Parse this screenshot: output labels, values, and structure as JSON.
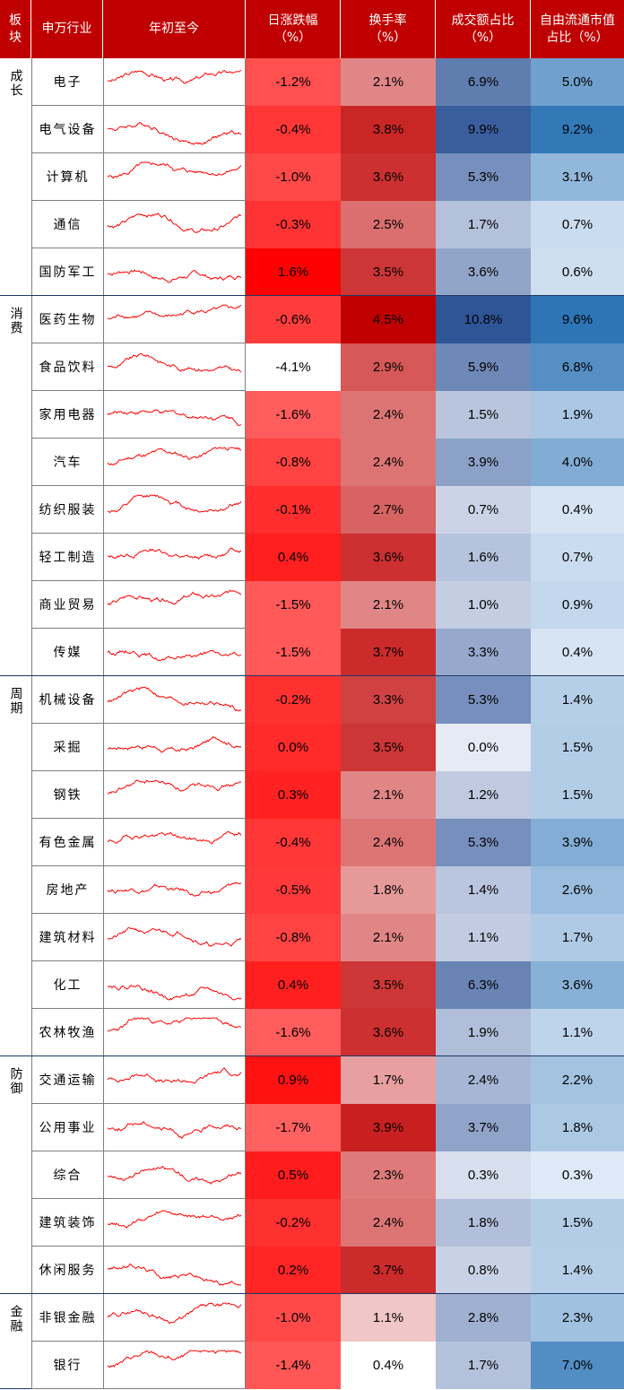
{
  "header": {
    "sector": [
      "板",
      "块"
    ],
    "industry": "申万行业",
    "ytd": "年初至今",
    "daily_change": [
      "日涨跌幅",
      "（%）"
    ],
    "turnover": [
      "换手率",
      "（%）"
    ],
    "volume_share": [
      "成交额占比",
      "（%）"
    ],
    "float_cap_share": [
      "自由流通市值",
      "占比（%）"
    ]
  },
  "colors": {
    "header_bg": "#c00000",
    "red_max": "#ff0000",
    "red_turnover_max": "#c00000",
    "blue_max": "#2f5597",
    "spark_line": "#ff0000"
  },
  "chart_data": {
    "type": "table",
    "columns": [
      "板块",
      "申万行业",
      "年初至今",
      "日涨跌幅（%）",
      "换手率（%）",
      "成交额占比（%）",
      "自由流通市值占比（%）"
    ],
    "groups": [
      {
        "sector": "成长",
        "rows": [
          {
            "industry": "电子",
            "daily": "-1.2%",
            "turnover": "2.1%",
            "volume": "6.9%",
            "cap": "5.0%"
          },
          {
            "industry": "电气设备",
            "daily": "-0.4%",
            "turnover": "3.8%",
            "volume": "9.9%",
            "cap": "9.2%"
          },
          {
            "industry": "计算机",
            "daily": "-1.0%",
            "turnover": "3.6%",
            "volume": "5.3%",
            "cap": "3.1%"
          },
          {
            "industry": "通信",
            "daily": "-0.3%",
            "turnover": "2.5%",
            "volume": "1.7%",
            "cap": "0.7%"
          },
          {
            "industry": "国防军工",
            "daily": "1.6%",
            "turnover": "3.5%",
            "volume": "3.6%",
            "cap": "0.6%"
          }
        ]
      },
      {
        "sector": "消费",
        "rows": [
          {
            "industry": "医药生物",
            "daily": "-0.6%",
            "turnover": "4.5%",
            "volume": "10.8%",
            "cap": "9.6%"
          },
          {
            "industry": "食品饮料",
            "daily": "-4.1%",
            "turnover": "2.9%",
            "volume": "5.9%",
            "cap": "6.8%"
          },
          {
            "industry": "家用电器",
            "daily": "-1.6%",
            "turnover": "2.4%",
            "volume": "1.5%",
            "cap": "1.9%"
          },
          {
            "industry": "汽车",
            "daily": "-0.8%",
            "turnover": "2.4%",
            "volume": "3.9%",
            "cap": "4.0%"
          },
          {
            "industry": "纺织服装",
            "daily": "-0.1%",
            "turnover": "2.7%",
            "volume": "0.7%",
            "cap": "0.4%"
          },
          {
            "industry": "轻工制造",
            "daily": "0.4%",
            "turnover": "3.6%",
            "volume": "1.6%",
            "cap": "0.7%"
          },
          {
            "industry": "商业贸易",
            "daily": "-1.5%",
            "turnover": "2.1%",
            "volume": "1.0%",
            "cap": "0.9%"
          },
          {
            "industry": "传媒",
            "daily": "-1.5%",
            "turnover": "3.7%",
            "volume": "3.3%",
            "cap": "0.4%"
          }
        ]
      },
      {
        "sector": "周期",
        "rows": [
          {
            "industry": "机械设备",
            "daily": "-0.2%",
            "turnover": "3.3%",
            "volume": "5.3%",
            "cap": "1.4%"
          },
          {
            "industry": "采掘",
            "daily": "0.0%",
            "turnover": "3.5%",
            "volume": "0.0%",
            "cap": "1.5%"
          },
          {
            "industry": "钢铁",
            "daily": "0.3%",
            "turnover": "2.1%",
            "volume": "1.2%",
            "cap": "1.5%"
          },
          {
            "industry": "有色金属",
            "daily": "-0.4%",
            "turnover": "2.4%",
            "volume": "5.3%",
            "cap": "3.9%"
          },
          {
            "industry": "房地产",
            "daily": "-0.5%",
            "turnover": "1.8%",
            "volume": "1.4%",
            "cap": "2.6%"
          },
          {
            "industry": "建筑材料",
            "daily": "-0.8%",
            "turnover": "2.1%",
            "volume": "1.1%",
            "cap": "1.7%"
          },
          {
            "industry": "化工",
            "daily": "0.4%",
            "turnover": "3.5%",
            "volume": "6.3%",
            "cap": "3.6%"
          },
          {
            "industry": "农林牧渔",
            "daily": "-1.6%",
            "turnover": "3.6%",
            "volume": "1.9%",
            "cap": "1.1%"
          }
        ]
      },
      {
        "sector": "防御",
        "rows": [
          {
            "industry": "交通运输",
            "daily": "0.9%",
            "turnover": "1.7%",
            "volume": "2.4%",
            "cap": "2.2%"
          },
          {
            "industry": "公用事业",
            "daily": "-1.7%",
            "turnover": "3.9%",
            "volume": "3.7%",
            "cap": "1.8%"
          },
          {
            "industry": "综合",
            "daily": "0.5%",
            "turnover": "2.3%",
            "volume": "0.3%",
            "cap": "0.3%"
          },
          {
            "industry": "建筑装饰",
            "daily": "-0.2%",
            "turnover": "2.4%",
            "volume": "1.8%",
            "cap": "1.5%"
          },
          {
            "industry": "休闲服务",
            "daily": "0.2%",
            "turnover": "3.7%",
            "volume": "0.8%",
            "cap": "1.4%"
          }
        ]
      },
      {
        "sector": "金融",
        "rows": [
          {
            "industry": "非银金融",
            "daily": "-1.0%",
            "turnover": "1.1%",
            "volume": "2.8%",
            "cap": "2.3%"
          },
          {
            "industry": "银行",
            "daily": "-1.4%",
            "turnover": "0.4%",
            "volume": "1.7%",
            "cap": "7.0%"
          }
        ]
      }
    ]
  }
}
